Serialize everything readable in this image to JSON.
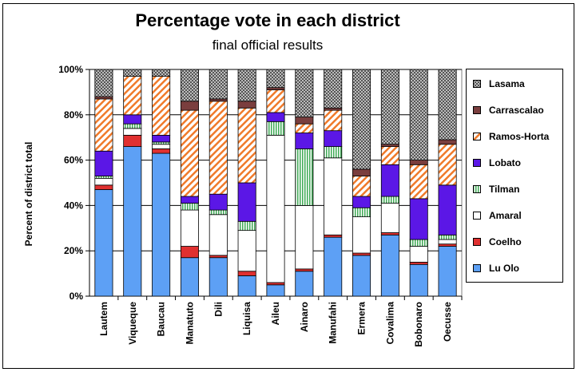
{
  "chart_data": {
    "type": "bar",
    "stacked": true,
    "title": "Percentage vote in each district",
    "subtitle": "final official results",
    "ylabel": "Percent of district total",
    "xlabel": "",
    "ylim": [
      0,
      100
    ],
    "yticks": [
      "0%",
      "20%",
      "40%",
      "60%",
      "80%",
      "100%"
    ],
    "legend_position": "right",
    "categories": [
      "Lautem",
      "Viqueque",
      "Baucau",
      "Manatuto",
      "Dili",
      "Liquisa",
      "Aileu",
      "Ainaro",
      "Manufahi",
      "Ermera",
      "Covalima",
      "Bobonaro",
      "Oecusse"
    ],
    "series": [
      {
        "name": "Lu Olo",
        "color": "#5da0f5",
        "pattern": "solid",
        "values": [
          47,
          66,
          63,
          17,
          17,
          9,
          5,
          11,
          26,
          18,
          27,
          14,
          22
        ]
      },
      {
        "name": "Coelho",
        "color": "#e03030",
        "pattern": "solid",
        "values": [
          2,
          5,
          2,
          5,
          1,
          2,
          1,
          1,
          1,
          1,
          1,
          1,
          1
        ]
      },
      {
        "name": "Amaral",
        "color": "#ffffff",
        "pattern": "solid",
        "values": [
          3,
          3,
          2,
          16,
          18,
          18,
          65,
          28,
          34,
          16,
          13,
          7,
          2
        ]
      },
      {
        "name": "Tilman",
        "color": "#3faa55",
        "pattern": "vstripes",
        "values": [
          1,
          2,
          1,
          3,
          2,
          4,
          6,
          25,
          5,
          4,
          3,
          3,
          2
        ]
      },
      {
        "name": "Lobato",
        "color": "#5b17e6",
        "pattern": "solid",
        "values": [
          11,
          4,
          3,
          3,
          7,
          17,
          4,
          7,
          7,
          5,
          14,
          18,
          22
        ]
      },
      {
        "name": "Ramos-Horta",
        "color": "#f07a2a",
        "pattern": "diagonal",
        "values": [
          23,
          17,
          26,
          38,
          41,
          33,
          10,
          4,
          9,
          9,
          8,
          15,
          18
        ]
      },
      {
        "name": "Carrascalao",
        "color": "#7a3e3e",
        "pattern": "solid",
        "values": [
          1,
          0,
          0,
          4,
          1,
          3,
          1,
          3,
          1,
          3,
          1,
          2,
          2
        ]
      },
      {
        "name": "Lasama",
        "color": "#555555",
        "pattern": "dots",
        "values": [
          12,
          3,
          3,
          14,
          13,
          14,
          8,
          21,
          17,
          44,
          33,
          40,
          31
        ]
      }
    ]
  }
}
